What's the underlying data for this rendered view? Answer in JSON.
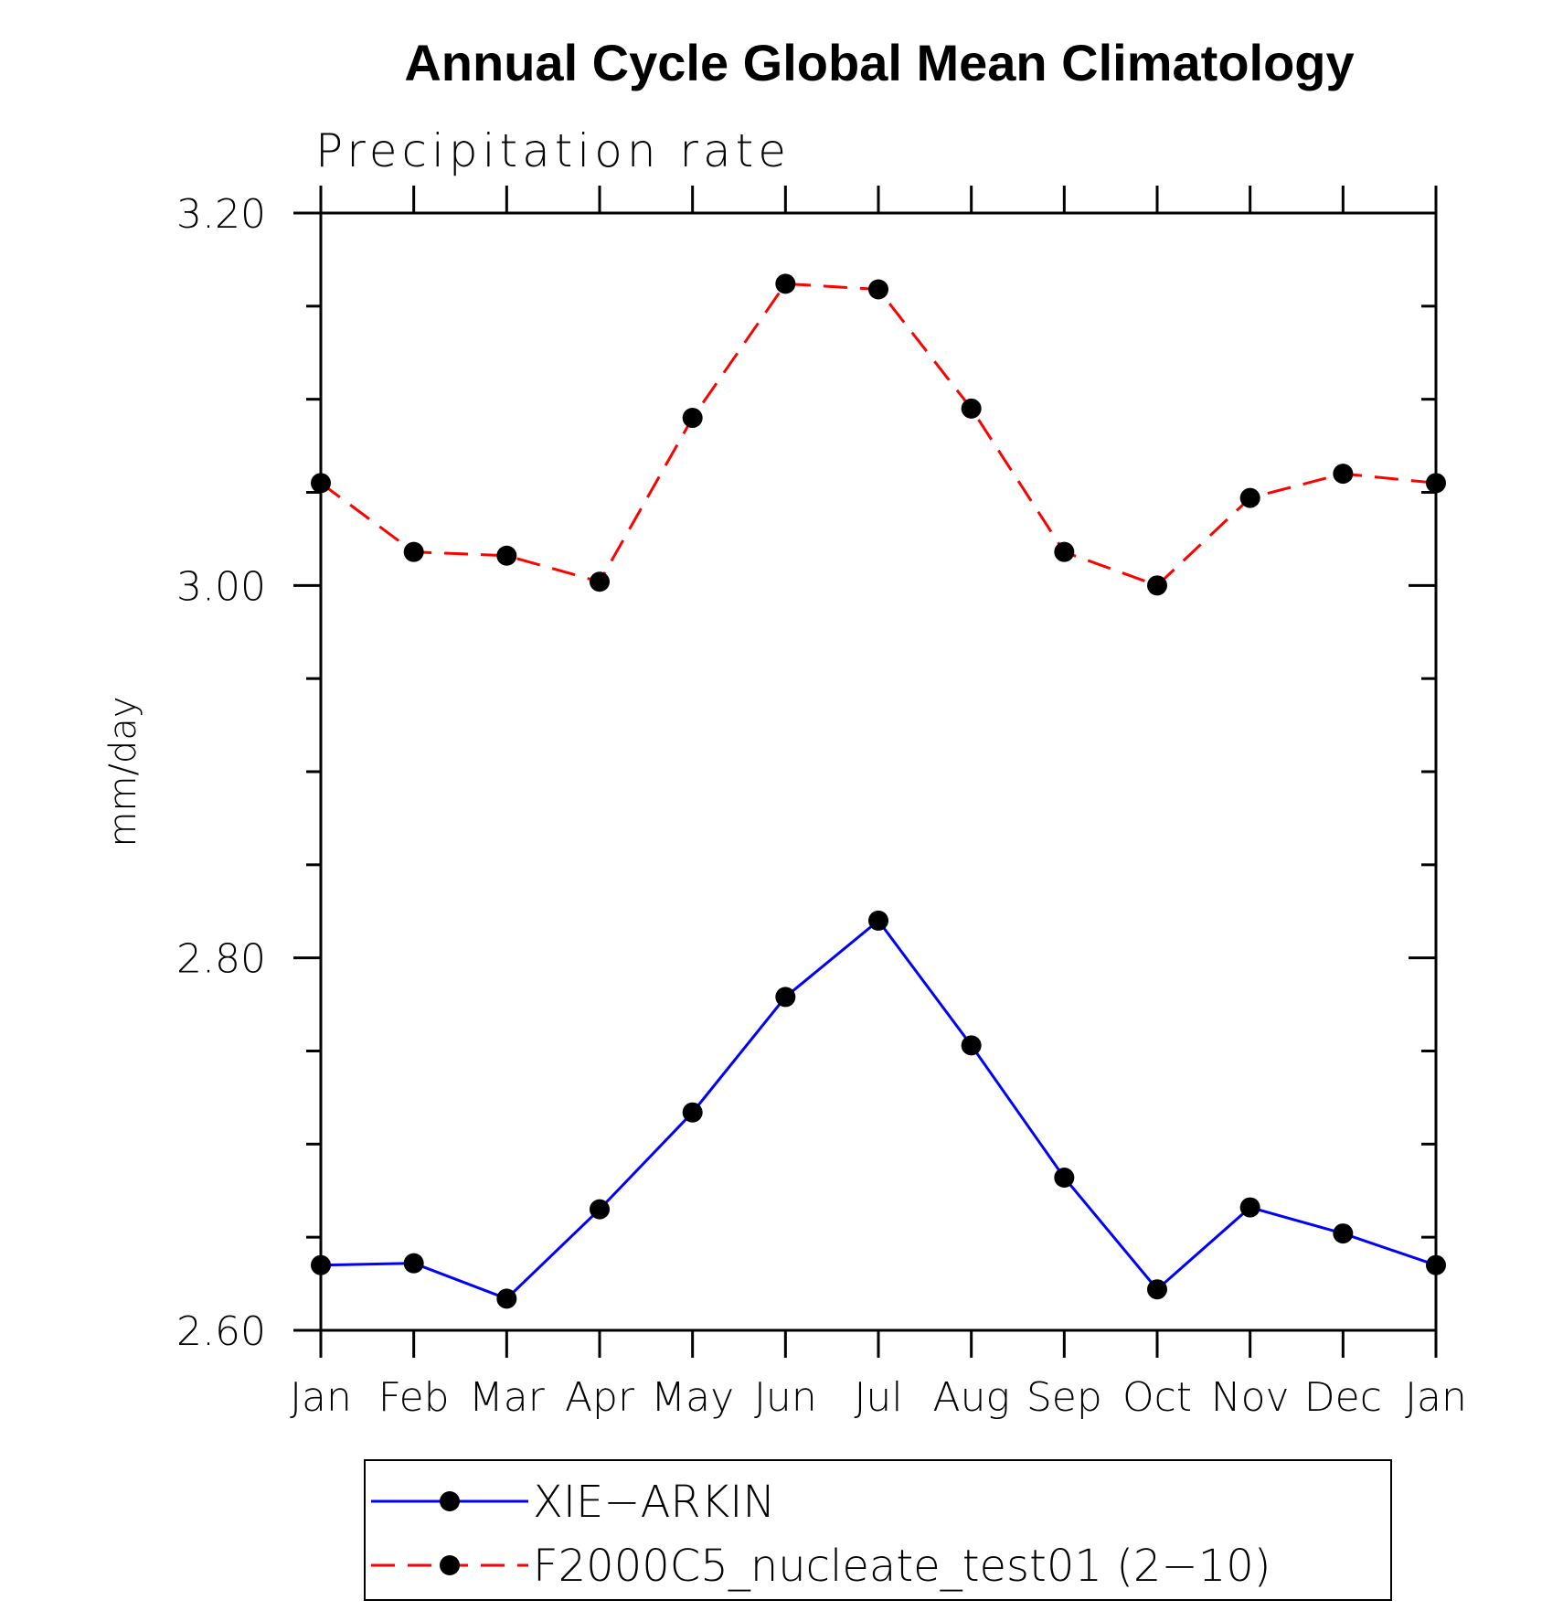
{
  "chart_data": {
    "type": "line",
    "title": "Annual Cycle Global Mean Climatology",
    "subtitle": "Precipitation rate",
    "xlabel": "",
    "ylabel": "mm/day",
    "categories": [
      "Jan",
      "Feb",
      "Mar",
      "Apr",
      "May",
      "Jun",
      "Jul",
      "Aug",
      "Sep",
      "Oct",
      "Nov",
      "Dec",
      "Jan"
    ],
    "ylim": [
      2.6,
      3.2
    ],
    "yticks": [
      "2.60",
      "2.80",
      "3.00",
      "3.20"
    ],
    "yticks_values": [
      2.6,
      2.8,
      3.0,
      3.2
    ],
    "y_minor_step": 0.05,
    "grid": false,
    "legend_position": "bottom",
    "series": [
      {
        "name": "XIE−ARKIN",
        "color": "#0000ff",
        "line_style": "solid",
        "marker": "filled-circle",
        "values": [
          2.635,
          2.636,
          2.617,
          2.665,
          2.717,
          2.779,
          2.82,
          2.753,
          2.682,
          2.622,
          2.666,
          2.652,
          2.635
        ]
      },
      {
        "name": "F2000C5_nucleate_test01 (2−10)",
        "color": "#ff0000",
        "line_style": "dashed",
        "marker": "filled-circle",
        "values": [
          3.055,
          3.018,
          3.016,
          3.002,
          3.09,
          3.162,
          3.159,
          3.095,
          3.018,
          3.0,
          3.047,
          3.06,
          3.055
        ]
      }
    ]
  }
}
